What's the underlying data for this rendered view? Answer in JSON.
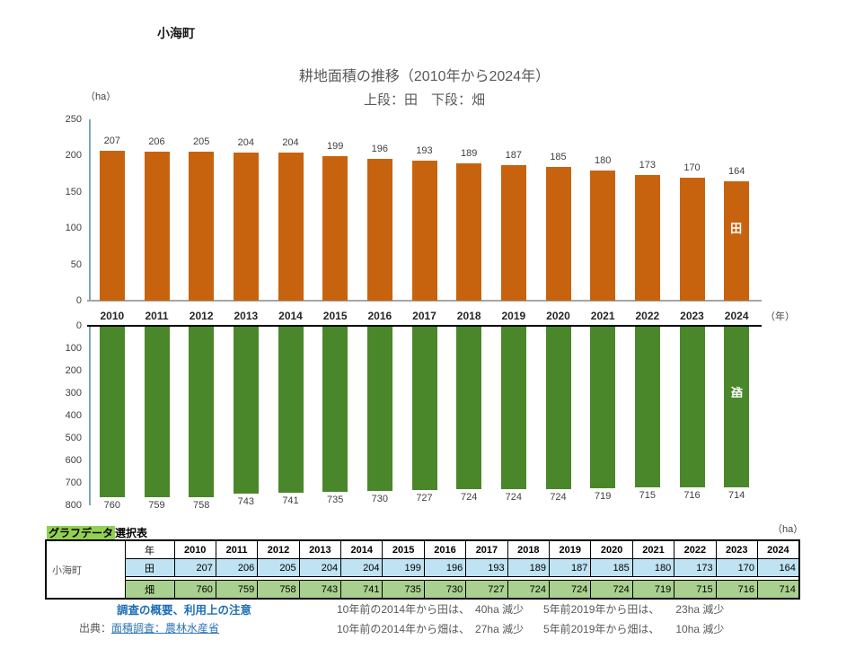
{
  "page": {
    "municipality": "小海町"
  },
  "chart": {
    "title": "耕地面積の推移（2010年から2024年）",
    "subtitle": "上段：田　下段：畑",
    "unit_label": "（ha）",
    "year_axis_label": "（年）"
  },
  "chart_data": [
    {
      "type": "bar",
      "series_name": "田",
      "categories": [
        "2010",
        "2011",
        "2012",
        "2013",
        "2014",
        "2015",
        "2016",
        "2017",
        "2018",
        "2019",
        "2020",
        "2021",
        "2022",
        "2023",
        "2024"
      ],
      "values": [
        207,
        206,
        205,
        204,
        204,
        199,
        196,
        193,
        189,
        187,
        185,
        180,
        173,
        170,
        164
      ],
      "bar_color": "#C7630F",
      "ylabel": "（ha）",
      "xlabel": "（年）",
      "ylim": [
        0,
        250
      ],
      "yticks": [
        0,
        50,
        100,
        150,
        200,
        250
      ],
      "grid": false,
      "axis_color": "#7FA6B6",
      "baseline_color": "#A6A6A6",
      "value_labels": "above bars",
      "orientation": "vertical, zero at bottom"
    },
    {
      "type": "bar",
      "series_name": "畑",
      "categories": [
        "2010",
        "2011",
        "2012",
        "2013",
        "2014",
        "2015",
        "2016",
        "2017",
        "2018",
        "2019",
        "2020",
        "2021",
        "2022",
        "2023",
        "2024"
      ],
      "values": [
        760,
        759,
        758,
        743,
        741,
        735,
        730,
        727,
        724,
        724,
        724,
        719,
        715,
        716,
        714
      ],
      "bar_color": "#4A872A",
      "ylim": [
        0,
        800
      ],
      "yticks": [
        0,
        100,
        200,
        300,
        400,
        500,
        600,
        700,
        800
      ],
      "grid": false,
      "axis_color": "#7FA6B6",
      "baseline_color": "#000000",
      "value_labels": "below bars",
      "orientation": "vertical, inverted axis, zero at top, bars hang downward"
    }
  ],
  "table": {
    "title_highlight": "グラフデータ",
    "title_rest": "選択表",
    "unit_label": "（ha）",
    "row_header": "小海町",
    "col_header": "年",
    "years": [
      "2010",
      "2011",
      "2012",
      "2013",
      "2014",
      "2015",
      "2016",
      "2017",
      "2018",
      "2019",
      "2020",
      "2021",
      "2022",
      "2023",
      "2024"
    ],
    "rows": [
      {
        "label": "田",
        "bg": "#BFE3F2",
        "values": [
          207,
          206,
          205,
          204,
          204,
          199,
          196,
          193,
          189,
          187,
          185,
          180,
          173,
          170,
          164
        ]
      },
      {
        "label": "畑",
        "bg": "#A9D08E",
        "values": [
          760,
          759,
          758,
          743,
          741,
          735,
          730,
          727,
          724,
          724,
          724,
          719,
          715,
          716,
          714
        ]
      }
    ]
  },
  "footer": {
    "survey_link": "調査の概要、利用上の注意",
    "source_label": "出典：",
    "source_link": "面積調査：農林水産省",
    "notes_10y": [
      "10年前の2014年から田は、　40ha 減少",
      "10年前の2014年から畑は、　27ha 減少"
    ],
    "notes_5y": [
      "5年前2019年から田は、　　23ha 減少",
      "5年前2019年から畑は、　　10ha 減少"
    ]
  },
  "colors": {
    "paddy_bar": "#C7630F",
    "field_bar": "#4A872A",
    "axis_teal": "#7FA6B6",
    "axis_gray": "#A6A6A6",
    "axis_black": "#000000",
    "title_gray": "#595959",
    "table_blue": "#BFE3F2",
    "table_green": "#A9D08E",
    "highlight_green": "#92D050",
    "link_blue": "#1F6FB5",
    "source_link_blue": "#2E74B5"
  }
}
